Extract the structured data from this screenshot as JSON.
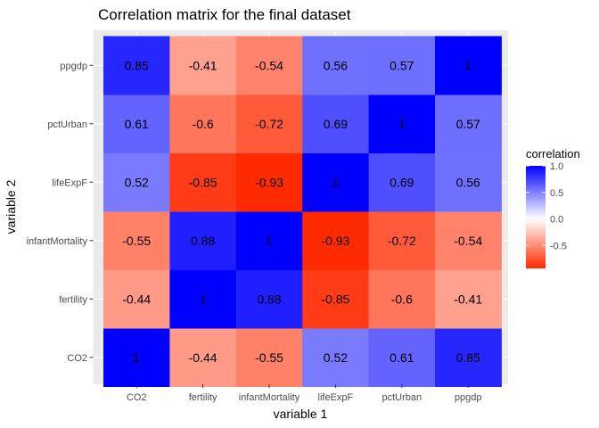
{
  "chart_data": {
    "type": "heatmap",
    "title": "Correlation matrix for the final dataset",
    "xlabel": "variable 1",
    "ylabel": "variable 2",
    "x_categories": [
      "CO2",
      "fertility",
      "infantMortality",
      "lifeExpF",
      "pctUrban",
      "ppgdp"
    ],
    "y_categories": [
      "CO2",
      "fertility",
      "infantMortality",
      "lifeExpF",
      "pctUrban",
      "ppgdp"
    ],
    "values": [
      [
        1,
        -0.44,
        -0.55,
        0.52,
        0.61,
        0.85
      ],
      [
        -0.44,
        1,
        0.88,
        -0.85,
        -0.6,
        -0.41
      ],
      [
        -0.55,
        0.88,
        1,
        -0.93,
        -0.72,
        -0.54
      ],
      [
        0.52,
        -0.85,
        -0.93,
        1,
        0.69,
        0.56
      ],
      [
        0.61,
        -0.6,
        -0.72,
        0.69,
        1,
        0.57
      ],
      [
        0.85,
        -0.41,
        -0.54,
        0.56,
        0.57,
        1
      ]
    ],
    "cell_labels": [
      [
        "1",
        "-0.44",
        "-0.55",
        "0.52",
        "0.61",
        "0.85"
      ],
      [
        "-0.44",
        "1",
        "0.88",
        "-0.85",
        "-0.6",
        "-0.41"
      ],
      [
        "-0.55",
        "0.88",
        "1",
        "-0.93",
        "-0.72",
        "-0.54"
      ],
      [
        "0.52",
        "-0.85",
        "-0.93",
        "1",
        "0.69",
        "0.56"
      ],
      [
        "0.61",
        "-0.6",
        "-0.72",
        "0.69",
        "1",
        "0.57"
      ],
      [
        "0.85",
        "-0.41",
        "-0.54",
        "0.56",
        "0.57",
        "1"
      ]
    ],
    "legend": {
      "title": "correlation",
      "placement": "right",
      "ticks": [
        1.0,
        0.5,
        0.0,
        -0.5
      ],
      "tick_labels": [
        "1.0",
        "0.5",
        "0.0",
        "-0.5"
      ],
      "range": [
        -0.93,
        1.0
      ]
    },
    "colors": {
      "low": "#ff2a00",
      "mid": "#ffffff",
      "high": "#0000ff",
      "panel_background": "#ebebeb"
    },
    "grid": true
  }
}
